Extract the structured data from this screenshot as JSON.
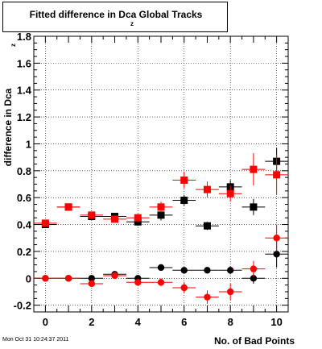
{
  "chart_data": {
    "type": "scatter",
    "title": "Fitted difference in Dca  Global Tracks",
    "title_subscript": "z",
    "xlabel": "No. of Bad Points",
    "ylabel": "difference in Dca",
    "ylabel_subscript": "z",
    "xlim": [
      -0.5,
      10.5
    ],
    "ylim": [
      -0.25,
      1.8
    ],
    "xticks": [
      "0",
      "2",
      "4",
      "6",
      "8",
      "10"
    ],
    "yticks": [
      "-0.2",
      "0",
      "0.2",
      "0.4",
      "0.6",
      "0.8",
      "1",
      "1.2",
      "1.4",
      "1.6",
      "1.8"
    ],
    "grid": true,
    "series": [
      {
        "marker": "square",
        "color": "#000000",
        "points": [
          [
            0,
            0.4,
            0.02
          ],
          [
            1,
            0.53,
            0.02
          ],
          [
            2,
            0.46,
            0.02
          ],
          [
            3,
            0.46,
            0.02
          ],
          [
            4,
            0.42,
            0.03
          ],
          [
            5,
            0.47,
            0.04
          ],
          [
            6,
            0.58,
            0.04
          ],
          [
            7,
            0.39,
            0.03
          ],
          [
            8,
            0.68,
            0.05
          ],
          [
            9,
            0.53,
            0.06
          ],
          [
            10,
            0.87,
            0.1
          ]
        ]
      },
      {
        "marker": "square",
        "color": "#ff0000",
        "points": [
          [
            0,
            0.41,
            0.02
          ],
          [
            1,
            0.53,
            0.02
          ],
          [
            2,
            0.47,
            0.02
          ],
          [
            3,
            0.44,
            0.02
          ],
          [
            4,
            0.45,
            0.03
          ],
          [
            5,
            0.53,
            0.04
          ],
          [
            6,
            0.73,
            0.06
          ],
          [
            7,
            0.66,
            0.06
          ],
          [
            8,
            0.63,
            0.06
          ],
          [
            9,
            0.81,
            0.12
          ],
          [
            10,
            0.77,
            0.15
          ]
        ]
      },
      {
        "marker": "circle",
        "color": "#000000",
        "points": [
          [
            0,
            0.0,
            0.01
          ],
          [
            1,
            0.0,
            0.01
          ],
          [
            2,
            0.0,
            0.01
          ],
          [
            3,
            0.03,
            0.01
          ],
          [
            4,
            0.0,
            0.02
          ],
          [
            5,
            0.08,
            0.02
          ],
          [
            6,
            0.06,
            0.02
          ],
          [
            7,
            0.06,
            0.02
          ],
          [
            8,
            0.06,
            0.03
          ],
          [
            9,
            0.0,
            0.04
          ],
          [
            10,
            0.18,
            0.1
          ]
        ]
      },
      {
        "marker": "circle",
        "color": "#ff0000",
        "points": [
          [
            0,
            0.0,
            0.01
          ],
          [
            1,
            0.0,
            0.01
          ],
          [
            2,
            -0.04,
            0.02
          ],
          [
            3,
            0.02,
            0.02
          ],
          [
            4,
            -0.03,
            0.02
          ],
          [
            5,
            -0.03,
            0.03
          ],
          [
            6,
            -0.07,
            0.04
          ],
          [
            7,
            -0.14,
            0.05
          ],
          [
            8,
            -0.1,
            0.06
          ],
          [
            9,
            0.07,
            0.06
          ],
          [
            10,
            0.3,
            0.1
          ]
        ]
      }
    ]
  },
  "footer_timestamp": "Mon Oct 31 10:24:37 2011"
}
